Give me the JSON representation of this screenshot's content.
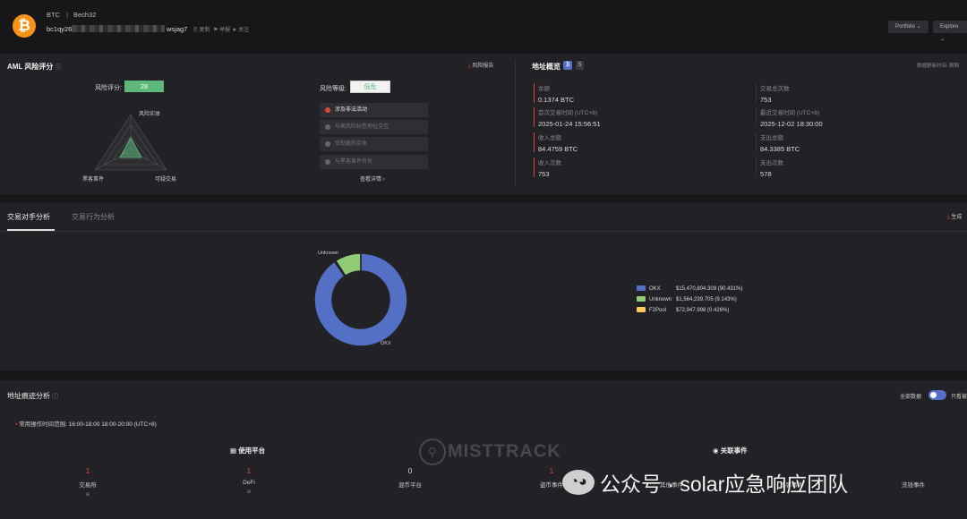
{
  "header": {
    "coin": "BTC",
    "address_type": "Bech32",
    "address": "bc1qy26",
    "address_tail": "wsjag7",
    "actions": [
      "复制",
      "举报",
      "关注"
    ],
    "portfolio_btn": "Portfolio",
    "explore_btn": "Explore"
  },
  "aml": {
    "title": "AML 风险评分",
    "report_link": "风险报告",
    "score_label": "风险评分:",
    "score": "28",
    "radar_labels": [
      "风险实体",
      "黑客事件",
      "可疑交易"
    ],
    "level_label": "风险等级:",
    "level": "低危",
    "risk_items": [
      {
        "label": "涉及非法活动",
        "active": true
      },
      {
        "label": "与高风险标签地址交互",
        "active": false
      },
      {
        "label": "受制裁的实体",
        "active": false
      },
      {
        "label": "与黑客事件有关",
        "active": false
      }
    ],
    "details_link": "查看详情 ›"
  },
  "overview": {
    "title": "地址概览",
    "badge": "5",
    "update_label": "数据更新时间: 刚刚",
    "items": [
      {
        "label": "余额",
        "value": "0.1374 BTC"
      },
      {
        "label": "交易总次数",
        "value": "753"
      },
      {
        "label": "首次交易时间 (UTC+8)",
        "value": "2025-01-24 15:56:51"
      },
      {
        "label": "最近交易时间 (UTC+8)",
        "value": "2025-12-02 18:30:00"
      },
      {
        "label": "收入总额",
        "value": "84.4759 BTC"
      },
      {
        "label": "支出总额",
        "value": "84.3385 BTC"
      },
      {
        "label": "收入次数",
        "value": "753"
      },
      {
        "label": "支出次数",
        "value": "578"
      }
    ]
  },
  "analysis": {
    "tabs": [
      "交易对手分析",
      "交易行为分析"
    ],
    "generate_link": "生成",
    "donut_label_top": "Unknown",
    "donut_label_bottom": "OKX"
  },
  "chart_data": {
    "type": "pie",
    "categories": [
      "OKX",
      "Unknown",
      "F2Pool"
    ],
    "values": [
      90.431,
      9.143,
      0.426
    ],
    "amounts": [
      "$15,470,804.309 (90.431%)",
      "$1,564,239.705 (9.143%)",
      "$72,947.998 (0.426%)"
    ],
    "colors": [
      "#5470c6",
      "#91cc75",
      "#fac858"
    ],
    "legend": "right"
  },
  "trace": {
    "title": "地址痕迹分析",
    "toggle_label": "全部数据",
    "toggle_right": "只看被",
    "time_range_label": "常用操作时间范围:",
    "time_range": "16:00-18:00  18:00-20:00 (UTC+8)",
    "platform_title": "使用平台",
    "event_title": "关联事件",
    "platform_stats": [
      {
        "n": "1",
        "label": "交易所",
        "red": true
      },
      {
        "n": "1",
        "label": "DeFi",
        "red": true
      },
      {
        "n": "0",
        "label": "混币平台",
        "red": false
      }
    ],
    "event_stats": [
      {
        "n": "1",
        "label": "盗币事件",
        "red": true
      },
      {
        "n": "",
        "label": "其他事件",
        "red": false
      },
      {
        "n": "",
        "label": "黑客事件",
        "red": false
      },
      {
        "n": "",
        "label": "洗钱事件",
        "red": false
      }
    ]
  },
  "watermark": {
    "brand": "MISTTRACK",
    "wechat": "公众号 · solar应急响应团队"
  },
  "colors": {
    "accent": "#5470c6",
    "danger": "#e0453a",
    "score_bg": "#5db87a"
  }
}
